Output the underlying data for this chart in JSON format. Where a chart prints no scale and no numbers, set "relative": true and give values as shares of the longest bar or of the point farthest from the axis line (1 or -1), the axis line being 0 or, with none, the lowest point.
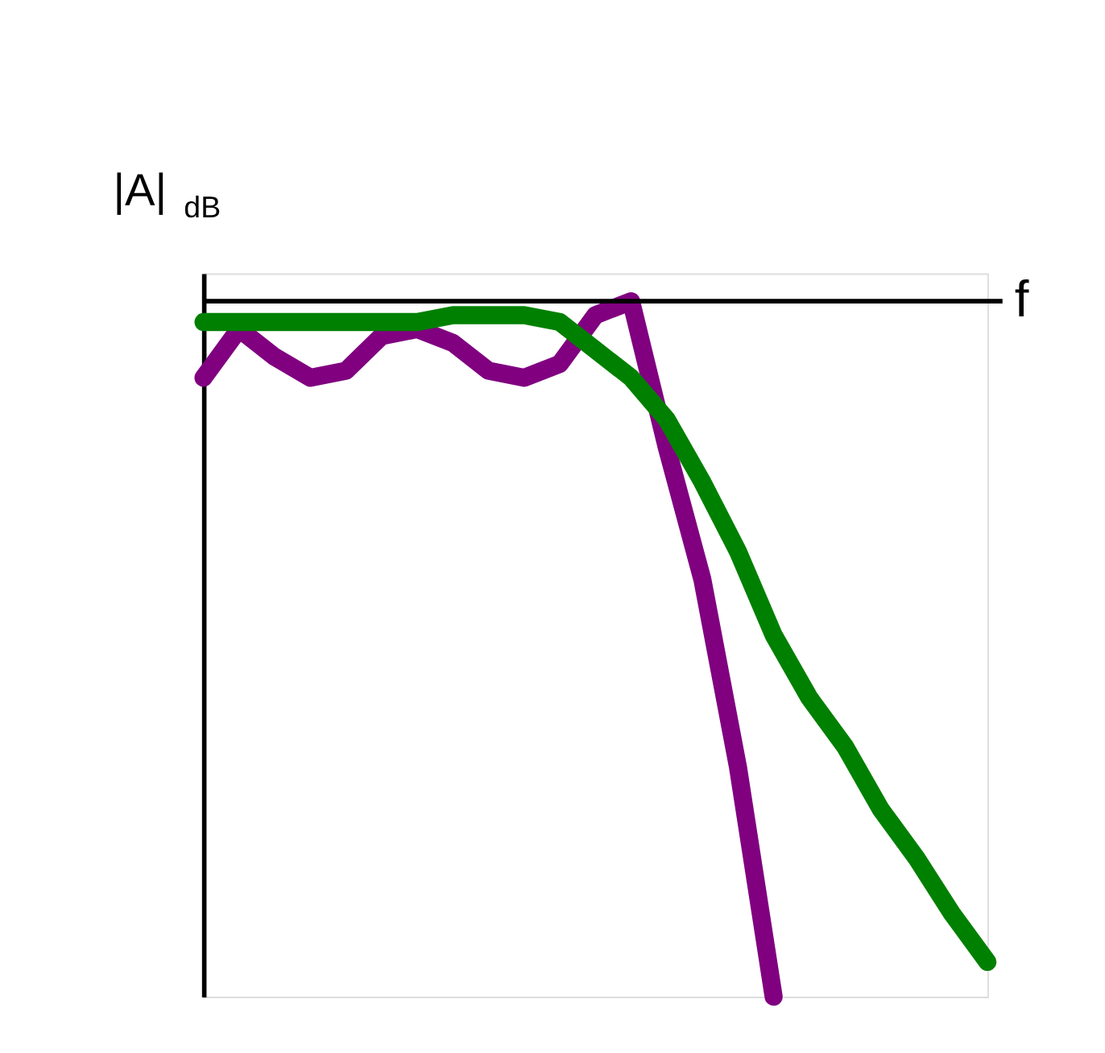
{
  "chart_data": {
    "type": "line",
    "relative": true,
    "ylabel": "|A|$_{dB}$",
    "xlabel": "f",
    "categories": [
      null,
      null,
      null,
      null,
      null,
      null,
      null,
      null,
      null,
      null,
      null,
      null,
      null,
      null,
      null,
      null,
      null,
      null,
      null,
      null,
      null,
      null,
      null
    ],
    "series": [
      {
        "color": "#800080",
        "values": [
          -0.11,
          -0.04,
          -0.08,
          -0.11,
          -0.1,
          -0.05,
          -0.04,
          -0.06,
          -0.1,
          -0.11,
          -0.09,
          -0.02,
          0.0,
          -0.21,
          -0.4,
          -0.67,
          -1.0,
          null,
          null,
          null,
          null,
          null,
          null
        ]
      },
      {
        "color": "#008000",
        "values": [
          -0.03,
          -0.03,
          -0.03,
          -0.03,
          -0.03,
          -0.03,
          -0.03,
          -0.02,
          -0.02,
          -0.02,
          -0.03,
          -0.07,
          -0.11,
          -0.17,
          -0.26,
          -0.36,
          -0.48,
          -0.57,
          -0.64,
          -0.73,
          -0.8,
          -0.88,
          -0.95
        ]
      }
    ],
    "grid": false,
    "legend": false,
    "line_style": "solid",
    "marker": "none"
  }
}
